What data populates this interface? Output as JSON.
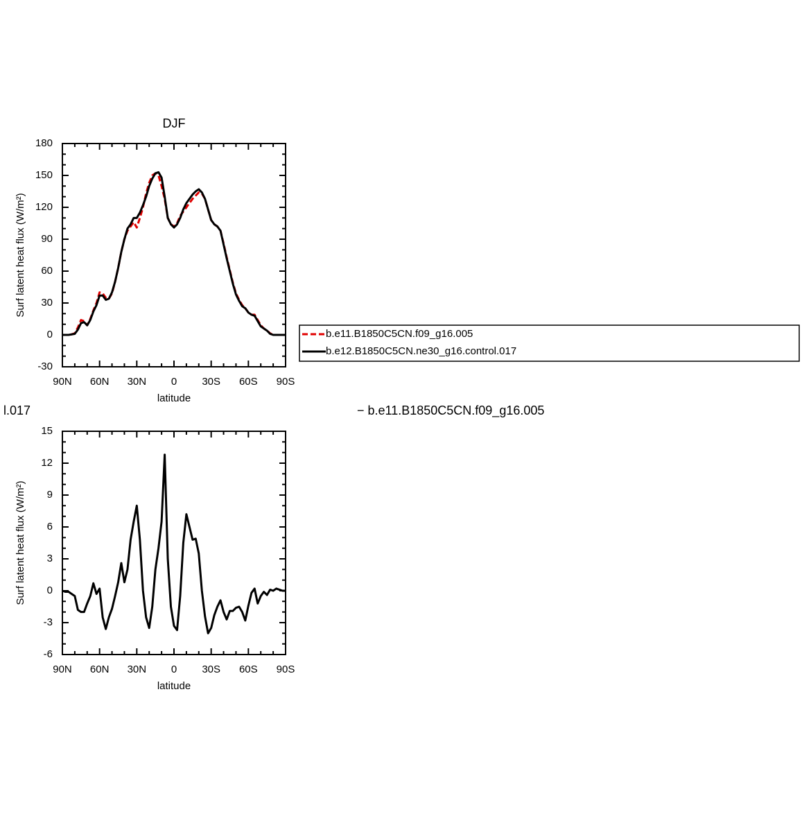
{
  "chart_data": [
    {
      "type": "line",
      "title": "DJF",
      "xlabel": "latitude",
      "ylabel": "Surf latent heat flux (W/m²)",
      "x": [
        90,
        87.5,
        85,
        82.5,
        80,
        77.5,
        75,
        72.5,
        70,
        67.5,
        65,
        62.5,
        60,
        57.5,
        55,
        52.5,
        50,
        47.5,
        45,
        42.5,
        40,
        37.5,
        35,
        32.5,
        30,
        27.5,
        25,
        22.5,
        20,
        17.5,
        15,
        12.5,
        10,
        7.5,
        5,
        2.5,
        0,
        -2.5,
        -5,
        -7.5,
        -10,
        -12.5,
        -15,
        -17.5,
        -20,
        -22.5,
        -25,
        -27.5,
        -30,
        -32.5,
        -35,
        -37.5,
        -40,
        -42.5,
        -45,
        -47.5,
        -50,
        -52.5,
        -55,
        -57.5,
        -60,
        -62.5,
        -65,
        -67.5,
        -70,
        -72.5,
        -75,
        -77.5,
        -80,
        -82.5,
        -85,
        -87.5,
        -90
      ],
      "xlim": [
        90,
        -90
      ],
      "xticks": [
        {
          "value": 90,
          "label": "90N"
        },
        {
          "value": 60,
          "label": "60N"
        },
        {
          "value": 30,
          "label": "30N"
        },
        0,
        {
          "value": -30,
          "label": "30S"
        },
        {
          "value": -60,
          "label": "60S"
        },
        {
          "value": -90,
          "label": "90S"
        }
      ],
      "xminorticks": [
        80,
        70,
        50,
        40,
        20,
        10,
        -10,
        -20,
        -40,
        -50,
        -70,
        -80
      ],
      "ylim": [
        -30,
        180
      ],
      "yticks": [
        -30,
        0,
        30,
        60,
        90,
        120,
        150,
        180
      ],
      "yminorticks": [
        -20,
        -10,
        10,
        20,
        40,
        50,
        70,
        80,
        100,
        110,
        130,
        140,
        160,
        170
      ],
      "legend": "right",
      "series": [
        {
          "name": "b.e11.B1850C5CN.f09_g16.005",
          "color": "#e00000",
          "linestyle": "dashed",
          "values": [
            0,
            0,
            0,
            0.5,
            1.5,
            7,
            14,
            13,
            9,
            15,
            23,
            30,
            40,
            39,
            35,
            34,
            39,
            50,
            63,
            78,
            90,
            98,
            102,
            106,
            101,
            110,
            120,
            133,
            143,
            150,
            152,
            150,
            140,
            128,
            110,
            104,
            102,
            105,
            112,
            116,
            120,
            124,
            128,
            131,
            134,
            133,
            128,
            118,
            108,
            104,
            102,
            98,
            86,
            73,
            61,
            49,
            39,
            33,
            28,
            25,
            21,
            19,
            19,
            14,
            9,
            6,
            4,
            1.5,
            0,
            0,
            0,
            0,
            0
          ]
        },
        {
          "name": "b.e12.B1850C5CN.ne30_g16.control.017",
          "color": "#000000",
          "linestyle": "solid",
          "values": [
            0,
            0,
            0,
            0.5,
            1,
            5,
            11,
            12,
            9,
            14,
            22,
            28,
            37,
            37,
            33,
            34,
            40,
            50,
            63,
            78,
            90,
            100,
            104,
            110,
            110,
            115,
            122,
            130,
            140,
            147,
            152,
            153,
            148,
            130,
            110,
            104,
            101,
            104,
            110,
            118,
            124,
            128,
            132,
            135,
            137,
            134,
            128,
            118,
            108,
            104,
            102,
            98,
            85,
            72,
            60,
            48,
            38,
            32,
            27,
            25,
            21,
            19,
            18,
            13,
            8,
            6,
            4,
            1,
            0,
            0,
            0,
            0,
            0
          ]
        }
      ]
    },
    {
      "type": "line",
      "title_fragments": [
        "l.017",
        "− b.e11.B1850C5CN.f09_g16.005"
      ],
      "xlabel": "latitude",
      "ylabel": "Surf latent heat flux (W/m²)",
      "x": [
        90,
        87.5,
        85,
        82.5,
        80,
        77.5,
        75,
        72.5,
        70,
        67.5,
        65,
        62.5,
        60,
        57.5,
        55,
        52.5,
        50,
        47.5,
        45,
        42.5,
        40,
        37.5,
        35,
        32.5,
        30,
        27.5,
        25,
        22.5,
        20,
        17.5,
        15,
        12.5,
        10,
        7.5,
        5,
        2.5,
        0,
        -2.5,
        -5,
        -7.5,
        -10,
        -12.5,
        -15,
        -17.5,
        -20,
        -22.5,
        -25,
        -27.5,
        -30,
        -32.5,
        -35,
        -37.5,
        -40,
        -42.5,
        -45,
        -47.5,
        -50,
        -52.5,
        -55,
        -57.5,
        -60,
        -62.5,
        -65,
        -67.5,
        -70,
        -72.5,
        -75,
        -77.5,
        -80,
        -82.5,
        -85,
        -87.5,
        -90
      ],
      "xlim": [
        90,
        -90
      ],
      "xticks": [
        {
          "value": 90,
          "label": "90N"
        },
        {
          "value": 60,
          "label": "60N"
        },
        {
          "value": 30,
          "label": "30N"
        },
        0,
        {
          "value": -30,
          "label": "30S"
        },
        {
          "value": -60,
          "label": "60S"
        },
        {
          "value": -90,
          "label": "90S"
        }
      ],
      "xminorticks": [
        80,
        70,
        50,
        40,
        20,
        10,
        -10,
        -20,
        -40,
        -50,
        -70,
        -80
      ],
      "ylim": [
        -6,
        15
      ],
      "yticks": [
        -6,
        -3,
        0,
        3,
        6,
        9,
        12,
        15
      ],
      "yminorticks": [
        -5,
        -4,
        -2,
        -1,
        1,
        2,
        4,
        5,
        7,
        8,
        10,
        11,
        13,
        14
      ],
      "series": [
        {
          "color": "#000000",
          "linestyle": "solid",
          "values": [
            0,
            -0.1,
            -0.1,
            -0.3,
            -0.5,
            -1.8,
            -2,
            -2,
            -1.2,
            -0.5,
            0.7,
            -0.3,
            0.2,
            -2.5,
            -3.6,
            -2.5,
            -1.7,
            -0.5,
            0.8,
            2.6,
            0.8,
            2,
            4.8,
            6.5,
            8,
            4.8,
            0,
            -2.5,
            -3.5,
            -1.5,
            2,
            4,
            6.5,
            12.8,
            3,
            -1.5,
            -3.3,
            -3.7,
            -0.5,
            4.5,
            7.2,
            6,
            4.8,
            4.9,
            3.5,
            0,
            -2.4,
            -4,
            -3.5,
            -2.3,
            -1.5,
            -0.9,
            -2,
            -2.7,
            -1.9,
            -1.9,
            -1.6,
            -1.5,
            -2,
            -2.8,
            -1.4,
            -0.2,
            0.2,
            -1.2,
            -0.5,
            -0.1,
            -0.4,
            0.1,
            0,
            0.2,
            0.1,
            0,
            0
          ]
        }
      ]
    }
  ]
}
